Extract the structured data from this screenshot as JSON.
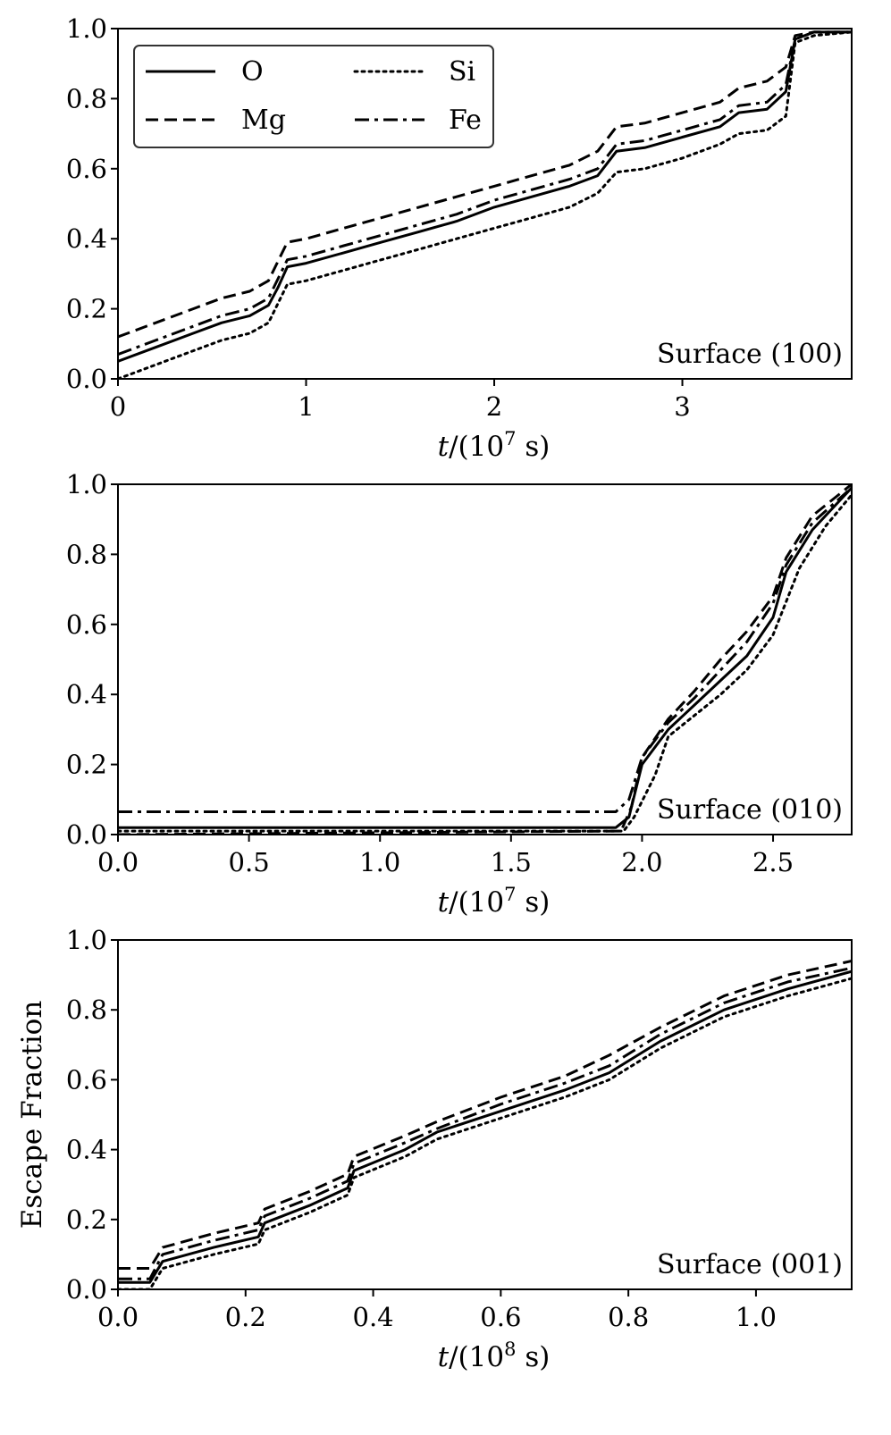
{
  "chart_data": [
    {
      "type": "line",
      "annotation": "Surface (100)",
      "xlabel_var": "t",
      "xlabel_rest": "/(10",
      "xlabel_exp": "7",
      "xlabel_tail": " s)",
      "ylabel": "",
      "xlim": [
        0,
        3.9
      ],
      "ylim": [
        0,
        1.0
      ],
      "xticks": [
        0,
        1,
        2,
        3
      ],
      "xtick_labels": [
        "0",
        "1",
        "2",
        "3"
      ],
      "yticks": [
        0,
        0.2,
        0.4,
        0.6,
        0.8,
        1.0
      ],
      "ytick_labels": [
        "0.0",
        "0.2",
        "0.4",
        "0.6",
        "0.8",
        "1.0"
      ],
      "legend": {
        "placement": "top-left",
        "entries": [
          {
            "name": "O",
            "style": "solid"
          },
          {
            "name": "Mg",
            "style": "dashed"
          },
          {
            "name": "Si",
            "style": "dotted"
          },
          {
            "name": "Fe",
            "style": "dashdot"
          }
        ]
      },
      "series": [
        {
          "name": "O",
          "style": "solid",
          "points": [
            [
              0,
              0.05
            ],
            [
              0.2,
              0.09
            ],
            [
              0.4,
              0.13
            ],
            [
              0.55,
              0.16
            ],
            [
              0.7,
              0.18
            ],
            [
              0.8,
              0.21
            ],
            [
              0.85,
              0.26
            ],
            [
              0.9,
              0.32
            ],
            [
              1.0,
              0.33
            ],
            [
              1.2,
              0.36
            ],
            [
              1.4,
              0.39
            ],
            [
              1.6,
              0.42
            ],
            [
              1.8,
              0.45
            ],
            [
              2.0,
              0.49
            ],
            [
              2.2,
              0.52
            ],
            [
              2.4,
              0.55
            ],
            [
              2.55,
              0.58
            ],
            [
              2.65,
              0.65
            ],
            [
              2.8,
              0.66
            ],
            [
              3.0,
              0.69
            ],
            [
              3.2,
              0.72
            ],
            [
              3.3,
              0.76
            ],
            [
              3.45,
              0.77
            ],
            [
              3.55,
              0.82
            ],
            [
              3.6,
              0.97
            ],
            [
              3.7,
              0.99
            ],
            [
              3.9,
              0.99
            ]
          ]
        },
        {
          "name": "Mg",
          "style": "dashed",
          "points": [
            [
              0,
              0.12
            ],
            [
              0.2,
              0.16
            ],
            [
              0.4,
              0.2
            ],
            [
              0.55,
              0.23
            ],
            [
              0.7,
              0.25
            ],
            [
              0.8,
              0.28
            ],
            [
              0.9,
              0.39
            ],
            [
              1.0,
              0.4
            ],
            [
              1.2,
              0.43
            ],
            [
              1.4,
              0.46
            ],
            [
              1.6,
              0.49
            ],
            [
              1.8,
              0.52
            ],
            [
              2.0,
              0.55
            ],
            [
              2.2,
              0.58
            ],
            [
              2.4,
              0.61
            ],
            [
              2.55,
              0.65
            ],
            [
              2.65,
              0.72
            ],
            [
              2.8,
              0.73
            ],
            [
              3.0,
              0.76
            ],
            [
              3.2,
              0.79
            ],
            [
              3.3,
              0.83
            ],
            [
              3.45,
              0.85
            ],
            [
              3.55,
              0.89
            ],
            [
              3.6,
              0.98
            ],
            [
              3.7,
              0.99
            ],
            [
              3.9,
              0.99
            ]
          ]
        },
        {
          "name": "Si",
          "style": "dotted",
          "points": [
            [
              0,
              0.0
            ],
            [
              0.2,
              0.04
            ],
            [
              0.4,
              0.08
            ],
            [
              0.55,
              0.11
            ],
            [
              0.7,
              0.13
            ],
            [
              0.8,
              0.16
            ],
            [
              0.9,
              0.27
            ],
            [
              1.0,
              0.28
            ],
            [
              1.2,
              0.31
            ],
            [
              1.4,
              0.34
            ],
            [
              1.6,
              0.37
            ],
            [
              1.8,
              0.4
            ],
            [
              2.0,
              0.43
            ],
            [
              2.2,
              0.46
            ],
            [
              2.4,
              0.49
            ],
            [
              2.55,
              0.53
            ],
            [
              2.65,
              0.59
            ],
            [
              2.8,
              0.6
            ],
            [
              3.0,
              0.63
            ],
            [
              3.2,
              0.67
            ],
            [
              3.3,
              0.7
            ],
            [
              3.45,
              0.71
            ],
            [
              3.55,
              0.75
            ],
            [
              3.6,
              0.96
            ],
            [
              3.7,
              0.98
            ],
            [
              3.9,
              0.99
            ]
          ]
        },
        {
          "name": "Fe",
          "style": "dashdot",
          "points": [
            [
              0,
              0.07
            ],
            [
              0.2,
              0.11
            ],
            [
              0.4,
              0.15
            ],
            [
              0.55,
              0.18
            ],
            [
              0.7,
              0.2
            ],
            [
              0.8,
              0.23
            ],
            [
              0.9,
              0.34
            ],
            [
              1.0,
              0.35
            ],
            [
              1.2,
              0.38
            ],
            [
              1.4,
              0.41
            ],
            [
              1.6,
              0.44
            ],
            [
              1.8,
              0.47
            ],
            [
              2.0,
              0.51
            ],
            [
              2.2,
              0.54
            ],
            [
              2.4,
              0.57
            ],
            [
              2.55,
              0.6
            ],
            [
              2.65,
              0.67
            ],
            [
              2.8,
              0.68
            ],
            [
              3.0,
              0.71
            ],
            [
              3.2,
              0.74
            ],
            [
              3.3,
              0.78
            ],
            [
              3.45,
              0.79
            ],
            [
              3.55,
              0.84
            ],
            [
              3.6,
              0.97
            ],
            [
              3.7,
              0.99
            ],
            [
              3.9,
              0.99
            ]
          ]
        }
      ]
    },
    {
      "type": "line",
      "annotation": "Surface (010)",
      "xlabel_var": "t",
      "xlabel_rest": "/(10",
      "xlabel_exp": "7",
      "xlabel_tail": " s)",
      "ylabel": "",
      "xlim": [
        0,
        2.8
      ],
      "ylim": [
        0,
        1.0
      ],
      "xticks": [
        0,
        0.5,
        1.0,
        1.5,
        2.0,
        2.5
      ],
      "xtick_labels": [
        "0.0",
        "0.5",
        "1.0",
        "1.5",
        "2.0",
        "2.5"
      ],
      "yticks": [
        0,
        0.2,
        0.4,
        0.6,
        0.8,
        1.0
      ],
      "ytick_labels": [
        "0.0",
        "0.2",
        "0.4",
        "0.6",
        "0.8",
        "1.0"
      ],
      "series": [
        {
          "name": "O",
          "style": "solid",
          "points": [
            [
              0,
              0.02
            ],
            [
              1.9,
              0.02
            ],
            [
              1.95,
              0.05
            ],
            [
              2.0,
              0.2
            ],
            [
              2.1,
              0.3
            ],
            [
              2.2,
              0.37
            ],
            [
              2.3,
              0.44
            ],
            [
              2.4,
              0.51
            ],
            [
              2.5,
              0.62
            ],
            [
              2.55,
              0.75
            ],
            [
              2.65,
              0.87
            ],
            [
              2.8,
              0.99
            ]
          ]
        },
        {
          "name": "Mg",
          "style": "dashed",
          "points": [
            [
              0,
              0.0
            ],
            [
              1.92,
              0.01
            ],
            [
              1.96,
              0.08
            ],
            [
              2.0,
              0.22
            ],
            [
              2.1,
              0.33
            ],
            [
              2.2,
              0.41
            ],
            [
              2.3,
              0.5
            ],
            [
              2.4,
              0.58
            ],
            [
              2.5,
              0.68
            ],
            [
              2.55,
              0.79
            ],
            [
              2.65,
              0.91
            ],
            [
              2.8,
              1.0
            ]
          ]
        },
        {
          "name": "Si",
          "style": "dotted",
          "points": [
            [
              0,
              0.01
            ],
            [
              1.93,
              0.01
            ],
            [
              1.97,
              0.05
            ],
            [
              2.05,
              0.17
            ],
            [
              2.1,
              0.28
            ],
            [
              2.2,
              0.34
            ],
            [
              2.3,
              0.4
            ],
            [
              2.4,
              0.47
            ],
            [
              2.5,
              0.57
            ],
            [
              2.6,
              0.76
            ],
            [
              2.7,
              0.88
            ],
            [
              2.8,
              0.97
            ]
          ]
        },
        {
          "name": "Fe",
          "style": "dashdot",
          "points": [
            [
              0,
              0.065
            ],
            [
              1.9,
              0.065
            ],
            [
              1.95,
              0.1
            ],
            [
              2.0,
              0.22
            ],
            [
              2.1,
              0.32
            ],
            [
              2.2,
              0.39
            ],
            [
              2.3,
              0.47
            ],
            [
              2.4,
              0.55
            ],
            [
              2.5,
              0.66
            ],
            [
              2.55,
              0.77
            ],
            [
              2.65,
              0.89
            ],
            [
              2.8,
              0.99
            ]
          ]
        }
      ]
    },
    {
      "type": "line",
      "annotation": "Surface (001)",
      "xlabel_var": "t",
      "xlabel_rest": "/(10",
      "xlabel_exp": "8",
      "xlabel_tail": " s)",
      "ylabel": "Escape Fraction",
      "xlim": [
        0,
        1.15
      ],
      "ylim": [
        0,
        1.0
      ],
      "xticks": [
        0,
        0.2,
        0.4,
        0.6,
        0.8,
        1.0
      ],
      "xtick_labels": [
        "0.0",
        "0.2",
        "0.4",
        "0.6",
        "0.8",
        "1.0"
      ],
      "yticks": [
        0,
        0.2,
        0.4,
        0.6,
        0.8,
        1.0
      ],
      "ytick_labels": [
        "0.0",
        "0.2",
        "0.4",
        "0.6",
        "0.8",
        "1.0"
      ],
      "series": [
        {
          "name": "O",
          "style": "solid",
          "points": [
            [
              0,
              0.02
            ],
            [
              0.05,
              0.02
            ],
            [
              0.07,
              0.08
            ],
            [
              0.15,
              0.12
            ],
            [
              0.22,
              0.15
            ],
            [
              0.23,
              0.19
            ],
            [
              0.3,
              0.24
            ],
            [
              0.36,
              0.29
            ],
            [
              0.37,
              0.34
            ],
            [
              0.45,
              0.4
            ],
            [
              0.5,
              0.45
            ],
            [
              0.6,
              0.51
            ],
            [
              0.7,
              0.57
            ],
            [
              0.77,
              0.62
            ],
            [
              0.85,
              0.71
            ],
            [
              0.95,
              0.8
            ],
            [
              1.05,
              0.86
            ],
            [
              1.15,
              0.91
            ]
          ]
        },
        {
          "name": "Mg",
          "style": "dashed",
          "points": [
            [
              0,
              0.06
            ],
            [
              0.05,
              0.06
            ],
            [
              0.07,
              0.12
            ],
            [
              0.15,
              0.16
            ],
            [
              0.22,
              0.19
            ],
            [
              0.23,
              0.23
            ],
            [
              0.3,
              0.28
            ],
            [
              0.36,
              0.33
            ],
            [
              0.37,
              0.38
            ],
            [
              0.45,
              0.44
            ],
            [
              0.5,
              0.48
            ],
            [
              0.6,
              0.55
            ],
            [
              0.7,
              0.61
            ],
            [
              0.77,
              0.67
            ],
            [
              0.85,
              0.75
            ],
            [
              0.95,
              0.84
            ],
            [
              1.05,
              0.9
            ],
            [
              1.15,
              0.94
            ]
          ]
        },
        {
          "name": "Si",
          "style": "dotted",
          "points": [
            [
              0,
              0.0
            ],
            [
              0.05,
              0.0
            ],
            [
              0.07,
              0.06
            ],
            [
              0.15,
              0.1
            ],
            [
              0.22,
              0.13
            ],
            [
              0.23,
              0.17
            ],
            [
              0.3,
              0.22
            ],
            [
              0.36,
              0.27
            ],
            [
              0.37,
              0.32
            ],
            [
              0.45,
              0.38
            ],
            [
              0.5,
              0.43
            ],
            [
              0.6,
              0.49
            ],
            [
              0.7,
              0.55
            ],
            [
              0.77,
              0.6
            ],
            [
              0.85,
              0.69
            ],
            [
              0.95,
              0.78
            ],
            [
              1.05,
              0.84
            ],
            [
              1.15,
              0.89
            ]
          ]
        },
        {
          "name": "Fe",
          "style": "dashdot",
          "points": [
            [
              0,
              0.03
            ],
            [
              0.05,
              0.03
            ],
            [
              0.07,
              0.1
            ],
            [
              0.15,
              0.14
            ],
            [
              0.22,
              0.17
            ],
            [
              0.23,
              0.21
            ],
            [
              0.3,
              0.26
            ],
            [
              0.36,
              0.31
            ],
            [
              0.37,
              0.36
            ],
            [
              0.45,
              0.42
            ],
            [
              0.5,
              0.46
            ],
            [
              0.6,
              0.53
            ],
            [
              0.7,
              0.59
            ],
            [
              0.77,
              0.64
            ],
            [
              0.85,
              0.73
            ],
            [
              0.95,
              0.82
            ],
            [
              1.05,
              0.88
            ],
            [
              1.15,
              0.92
            ]
          ]
        }
      ]
    }
  ]
}
